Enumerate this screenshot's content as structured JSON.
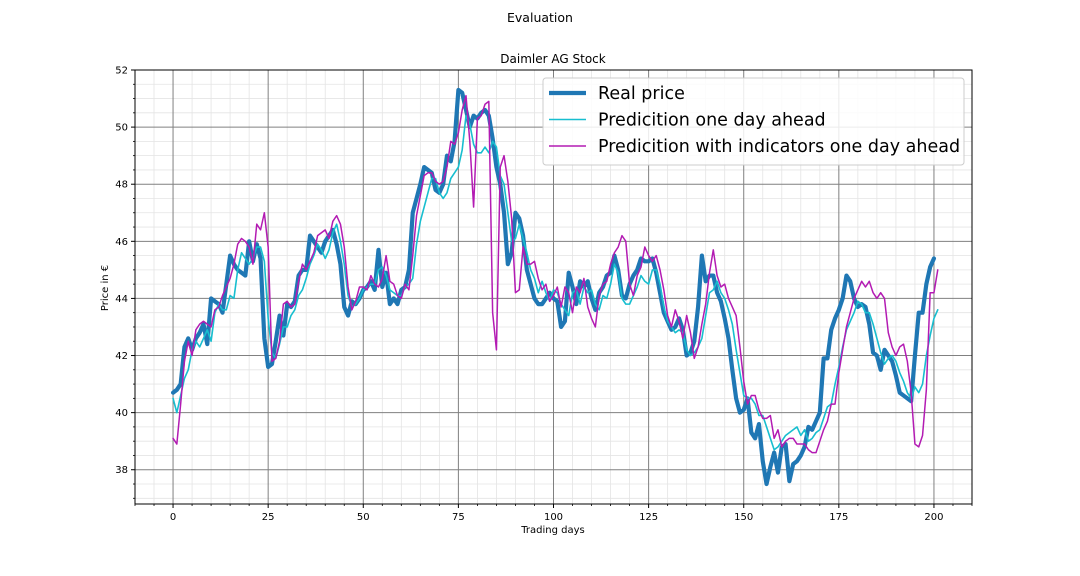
{
  "figure": {
    "suptitle": "Evaluation"
  },
  "colors": {
    "real": "#1f77b4",
    "pred": "#17becf",
    "pred_ind": "#b31bb3"
  },
  "chart_data": {
    "type": "line",
    "title": "Daimler AG Stock",
    "xlabel": "Trading days",
    "ylabel": "Price in €",
    "xlim": [
      -10,
      210
    ],
    "ylim": [
      36.8,
      52
    ],
    "xticks": [
      0,
      25,
      50,
      75,
      100,
      125,
      150,
      175,
      200
    ],
    "yticks": [
      38,
      40,
      42,
      44,
      46,
      48,
      50,
      52
    ],
    "grid": true,
    "legend": "top-right",
    "series": [
      {
        "name": "Real price",
        "key": "real",
        "x0": 0,
        "values": [
          40.7,
          40.8,
          41.0,
          42.3,
          42.6,
          42.2,
          42.6,
          42.8,
          43.1,
          42.4,
          44.0,
          43.9,
          43.8,
          43.5,
          44.5,
          45.5,
          45.2,
          45.0,
          44.9,
          44.8,
          46.0,
          45.3,
          45.9,
          45.4,
          42.6,
          41.6,
          41.7,
          42.5,
          43.4,
          42.7,
          43.8,
          43.7,
          43.9,
          44.8,
          45.0,
          45.0,
          46.2,
          46.0,
          45.8,
          45.6,
          46.0,
          46.2,
          46.4,
          45.9,
          45.2,
          43.7,
          43.4,
          43.9,
          43.8,
          44.0,
          44.3,
          44.4,
          44.6,
          44.3,
          45.7,
          44.4,
          44.9,
          43.8,
          44.0,
          43.8,
          44.3,
          44.4,
          45.0,
          47.0,
          47.5,
          48.0,
          48.6,
          48.5,
          48.4,
          47.8,
          47.7,
          48.0,
          49.0,
          48.8,
          49.5,
          51.3,
          51.2,
          50.6,
          50.0,
          50.4,
          50.3,
          50.5,
          50.6,
          50.4,
          49.6,
          48.6,
          48.0,
          47.0,
          45.2,
          45.6,
          47.0,
          46.8,
          46.2,
          45.0,
          44.5,
          44.0,
          43.8,
          43.8,
          44.0,
          44.2,
          44.0,
          43.9,
          43.0,
          43.2,
          44.9,
          44.4,
          43.8,
          44.6,
          44.4,
          44.6,
          44.0,
          43.6,
          44.2,
          44.4,
          44.8,
          44.9,
          45.5,
          45.0,
          44.1,
          44.0,
          44.5,
          44.8,
          45.0,
          45.4,
          45.3,
          45.3,
          45.4,
          44.9,
          44.2,
          43.5,
          43.2,
          42.9,
          43.0,
          43.3,
          42.9,
          42.0,
          42.1,
          42.5,
          43.7,
          45.5,
          44.6,
          44.8,
          44.8,
          44.2,
          43.9,
          43.3,
          42.6,
          41.5,
          40.5,
          40.0,
          40.1,
          40.5,
          39.3,
          39.1,
          39.6,
          38.3,
          37.5,
          38.1,
          38.6,
          37.9,
          38.8,
          38.9,
          37.6,
          38.2,
          38.3,
          38.5,
          38.8,
          39.5,
          39.4,
          39.7,
          40.0,
          41.9,
          41.9,
          42.9,
          43.3,
          43.6,
          44.0,
          44.8,
          44.6,
          44.0,
          43.7,
          43.8,
          43.7,
          43.1,
          42.1,
          42.0,
          41.5,
          42.2,
          42.0,
          41.8,
          41.3,
          40.7,
          40.6,
          40.5,
          40.4,
          42.0,
          43.5,
          43.5,
          44.5,
          45.1,
          45.4
        ]
      },
      {
        "name": "Predicition one day ahead",
        "key": "pred",
        "x0": 0,
        "values": [
          40.5,
          40.0,
          40.6,
          41.2,
          41.5,
          42.2,
          42.5,
          42.3,
          42.6,
          42.9,
          42.5,
          43.5,
          43.8,
          43.6,
          43.6,
          44.1,
          44.0,
          45.0,
          45.6,
          45.4,
          45.2,
          45.4,
          45.8,
          45.8,
          45.3,
          43.3,
          42.1,
          41.9,
          42.4,
          43.0,
          43.0,
          43.4,
          43.6,
          44.1,
          44.3,
          44.7,
          45.2,
          45.5,
          45.9,
          45.7,
          45.4,
          45.7,
          46.3,
          46.6,
          46.0,
          45.2,
          44.1,
          43.7,
          43.8,
          44.0,
          44.3,
          44.4,
          44.5,
          44.5,
          45.0,
          45.1,
          44.8,
          44.3,
          44.2,
          44.1,
          44.1,
          44.4,
          44.5,
          44.7,
          45.9,
          46.7,
          47.2,
          47.7,
          48.2,
          48.2,
          47.7,
          47.5,
          47.7,
          48.2,
          48.4,
          48.6,
          49.2,
          50.4,
          50.1,
          49.4,
          49.1,
          49.1,
          49.3,
          49.1,
          49.5,
          49.3,
          48.3,
          48.0,
          47.0,
          46.0,
          46.1,
          46.6,
          46.1,
          45.6,
          45.0,
          44.7,
          44.2,
          44.6,
          44.2,
          43.9,
          44.3,
          44.2,
          43.8,
          43.6,
          43.4,
          44.2,
          44.3,
          43.8,
          44.4,
          44.2,
          44.3,
          43.8,
          43.6,
          44.1,
          44.0,
          44.5,
          45.2,
          44.9,
          44.0,
          43.8,
          43.8,
          44.1,
          44.4,
          44.8,
          44.6,
          44.5,
          45.0,
          45.0,
          44.5,
          43.7,
          43.2,
          43.0,
          42.8,
          42.9,
          42.8,
          42.2,
          42.0,
          42.1,
          42.3,
          42.6,
          43.4,
          44.2,
          44.3,
          44.6,
          44.2,
          44.0,
          43.6,
          43.1,
          42.2,
          41.4,
          40.6,
          40.5,
          40.5,
          40.3,
          39.9,
          39.9,
          39.5,
          39.1,
          38.7,
          38.8,
          39.0,
          39.2,
          39.3,
          39.4,
          39.5,
          39.2,
          39.4,
          39.0,
          39.1,
          39.3,
          39.4,
          39.8,
          40.2,
          40.3,
          41.0,
          41.6,
          42.3,
          42.9,
          43.2,
          43.5,
          43.9,
          43.8,
          43.5,
          43.5,
          43.1,
          42.6,
          42.1,
          41.7,
          41.9,
          42.0,
          41.8,
          41.4,
          41.1,
          40.7,
          40.5,
          40.9,
          40.7,
          41.0,
          42.0,
          42.7,
          43.3,
          43.6
        ]
      },
      {
        "name": "Predicition with indicators one day ahead",
        "key": "pred_ind",
        "x0": 0,
        "values": [
          39.1,
          38.9,
          40.3,
          41.8,
          42.5,
          42.0,
          42.9,
          43.1,
          43.2,
          43.1,
          43.0,
          43.6,
          43.7,
          44.1,
          44.4,
          44.7,
          45.2,
          45.9,
          46.1,
          46.0,
          45.8,
          45.2,
          46.6,
          46.4,
          47.0,
          45.8,
          41.8,
          41.9,
          42.5,
          43.8,
          43.9,
          43.7,
          43.8,
          44.6,
          45.2,
          45.0,
          45.3,
          45.6,
          46.2,
          46.3,
          46.4,
          46.1,
          46.7,
          46.9,
          46.6,
          45.8,
          44.4,
          43.6,
          43.9,
          44.4,
          44.4,
          44.3,
          44.8,
          44.5,
          44.4,
          44.7,
          45.5,
          44.6,
          44.5,
          44.1,
          44.0,
          44.5,
          44.3,
          45.5,
          46.9,
          47.6,
          48.3,
          48.4,
          48.4,
          48.1,
          48.0,
          48.1,
          48.6,
          49.5,
          49.4,
          49.8,
          50.6,
          51.1,
          49.5,
          47.2,
          50.3,
          50.4,
          50.8,
          50.9,
          43.5,
          42.2,
          48.6,
          49.0,
          48.1,
          46.8,
          44.2,
          44.3,
          45.8,
          45.2,
          45.2,
          45.3,
          44.7,
          44.3,
          44.5,
          43.9,
          44.1,
          44.4,
          43.7,
          44.4,
          44.2,
          43.5,
          44.4,
          44.2,
          44.7,
          43.7,
          43.3,
          43.0,
          44.1,
          44.5,
          44.6,
          45.2,
          45.6,
          45.8,
          46.2,
          46.0,
          44.5,
          44.1,
          44.8,
          45.1,
          45.8,
          45.5,
          45.3,
          45.5,
          45.0,
          44.3,
          43.4,
          43.0,
          43.6,
          43.2,
          42.6,
          43.4,
          42.8,
          41.9,
          42.3,
          43.1,
          43.8,
          44.9,
          45.7,
          44.8,
          44.4,
          44.5,
          44.0,
          43.7,
          43.4,
          42.3,
          41.1,
          40.3,
          40.6,
          40.6,
          40.1,
          39.8,
          39.8,
          39.9,
          39.1,
          39.4,
          38.8,
          39.0,
          39.1,
          39.1,
          38.9,
          38.9,
          38.9,
          38.7,
          38.6,
          38.6,
          39.0,
          39.4,
          39.7,
          40.3,
          40.3,
          41.4,
          42.2,
          43.0,
          43.5,
          44.0,
          44.3,
          44.6,
          44.4,
          44.6,
          44.2,
          44.0,
          44.2,
          44.0,
          42.8,
          42.3,
          42.0,
          42.3,
          42.4,
          41.8,
          40.7,
          38.9,
          38.8,
          39.2,
          40.8,
          44.2,
          44.2,
          45.0
        ]
      }
    ]
  }
}
